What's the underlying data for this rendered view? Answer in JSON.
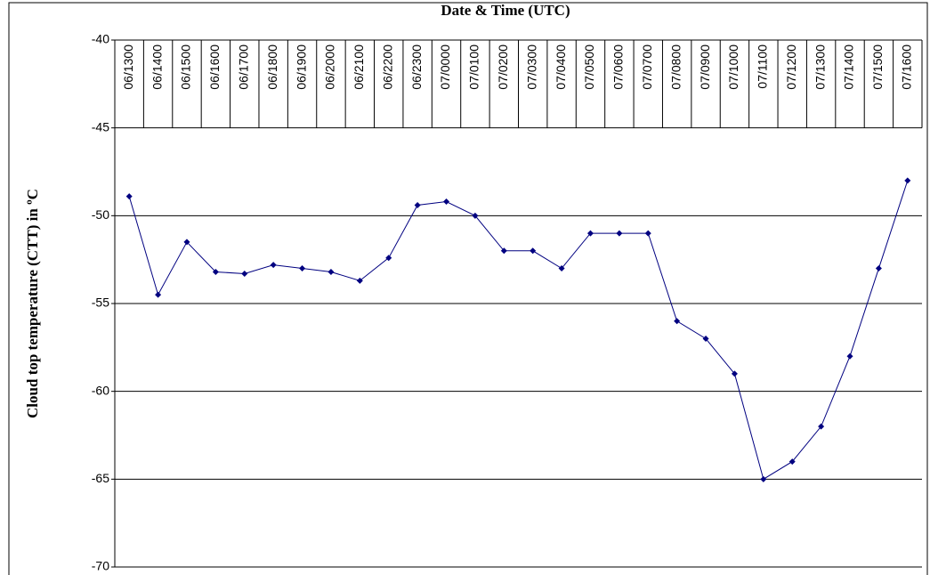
{
  "chart_data": {
    "type": "line",
    "title": "Date & Time (UTC)",
    "y_label": "Cloud top temperature (CTT) in ºC",
    "categories": [
      "06/1300",
      "06/1400",
      "06/1500",
      "06/1600",
      "06/1700",
      "06/1800",
      "06/1900",
      "06/2000",
      "06/2100",
      "06/2200",
      "06/2300",
      "07/0000",
      "07/0100",
      "07/0200",
      "07/0300",
      "07/0400",
      "07/0500",
      "07/0600",
      "07/0700",
      "07/0800",
      "07/0900",
      "07/1000",
      "07/1100",
      "07/1200",
      "07/1300",
      "07/1400",
      "07/1500",
      "07/1600"
    ],
    "series": [
      {
        "name": "CTT",
        "color": "#000080",
        "values": [
          -48.9,
          -54.5,
          -51.5,
          -53.2,
          -53.3,
          -52.8,
          -53,
          -53.2,
          -53.7,
          -52.4,
          -49.4,
          -49.2,
          -50,
          -52,
          -52,
          -53,
          -51,
          -51,
          -51,
          -56,
          -57,
          -59,
          -65,
          -64,
          -62,
          -58,
          -53,
          -48
        ]
      }
    ],
    "ylim": [
      -70,
      -40
    ],
    "yticks": [
      -70,
      -65,
      -60,
      -55,
      -50,
      -45,
      -40
    ],
    "grid": true
  }
}
